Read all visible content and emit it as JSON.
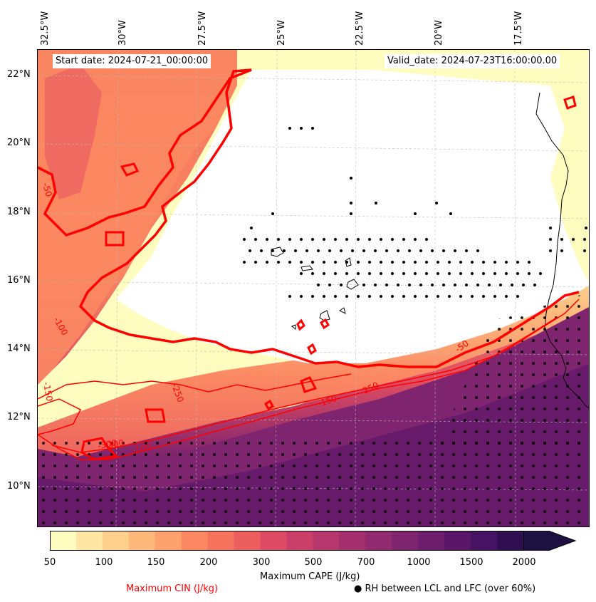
{
  "map": {
    "start_date": "Start date: 2024-07-21_00:00:00",
    "valid_date": "Valid_date: 2024-07-23T16:00:00.00",
    "lon_labels": [
      "32.5°W",
      "30°W",
      "27.5°W",
      "25°W",
      "22.5°W",
      "20°W",
      "17.5°W"
    ],
    "lat_labels": [
      "22°N",
      "20°N",
      "18°N",
      "16°N",
      "14°N",
      "12°N",
      "10°N"
    ],
    "contour_labels": [
      "-50",
      "-100",
      "-150",
      "-250",
      "-250",
      "-300",
      "-150",
      "-50",
      "-100",
      "-300"
    ]
  },
  "colorbar": {
    "ticks": [
      "50",
      "100",
      "150",
      "200",
      "300",
      "500",
      "700",
      "1000",
      "1500",
      "2000"
    ],
    "colors": [
      "#fffcbf",
      "#fee6a3",
      "#fed08c",
      "#feb87a",
      "#fda16d",
      "#fb8862",
      "#f5725c",
      "#ea5e5f",
      "#dc4b63",
      "#c93f69",
      "#b6376c",
      "#a32f6e",
      "#912a6f",
      "#7f246e",
      "#6c1d6c",
      "#5a1669",
      "#461263",
      "#2f0f52",
      "#1d1142"
    ],
    "label": "Maximum CAPE (J/kg)",
    "cin_label": "Maximum CIN (J/kg)",
    "rh_label": "RH between LCL and LFC (over 60%)",
    "rh_marker": "●",
    "cin_color": "#ff0000"
  }
}
